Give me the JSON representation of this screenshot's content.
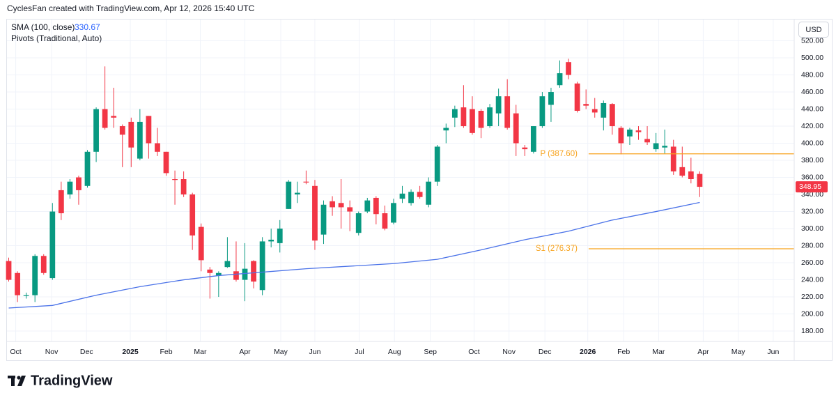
{
  "header": {
    "text": "CyclesFan created with TradingView.com, Apr 12, 2026 15:40 UTC"
  },
  "footer": {
    "brand": "TradingView"
  },
  "chart_data": {
    "type": "candlestick",
    "currency": "USD",
    "up_color": "#089981",
    "down_color": "#f23645",
    "open": [
      262,
      248,
      221,
      222,
      268,
      242,
      345,
      340,
      360,
      350,
      390,
      440,
      432,
      420,
      425,
      382,
      432,
      400,
      390,
      358,
      358,
      340,
      302,
      252,
      245,
      255,
      250,
      240,
      262,
      228,
      285,
      283,
      323,
      340,
      355,
      350,
      293,
      332,
      330,
      325,
      295,
      320,
      336,
      318,
      307,
      335,
      330,
      343,
      328,
      355,
      415,
      430,
      442,
      440,
      438,
      420,
      435,
      455,
      435,
      395,
      390,
      420,
      445,
      468,
      495,
      470,
      446,
      440,
      430,
      446,
      418,
      408,
      415,
      405,
      393,
      395,
      396,
      372,
      367,
      364
    ],
    "high": [
      266,
      250,
      225,
      270,
      270,
      330,
      355,
      358,
      362,
      392,
      442,
      490,
      465,
      422,
      430,
      440,
      432,
      418,
      390,
      368,
      367,
      342,
      306,
      255,
      250,
      290,
      285,
      283,
      263,
      290,
      300,
      310,
      357,
      355,
      368,
      357,
      333,
      338,
      358,
      333,
      320,
      336,
      338,
      327,
      335,
      350,
      346,
      350,
      360,
      398,
      423,
      444,
      468,
      455,
      440,
      446,
      464,
      475,
      445,
      398,
      420,
      460,
      465,
      497,
      499,
      472,
      463,
      453,
      450,
      447,
      420,
      418,
      420,
      420,
      412,
      416,
      404,
      396,
      383,
      367
    ],
    "low": [
      238,
      214,
      218,
      214,
      246,
      240,
      310,
      335,
      328,
      348,
      378,
      416,
      418,
      372,
      372,
      380,
      382,
      385,
      362,
      328,
      337,
      275,
      250,
      218,
      220,
      254,
      238,
      215,
      230,
      222,
      278,
      272,
      323,
      330,
      352,
      275,
      282,
      315,
      300,
      297,
      292,
      318,
      305,
      298,
      305,
      330,
      327,
      335,
      325,
      350,
      400,
      419,
      418,
      410,
      406,
      418,
      420,
      416,
      385,
      385,
      388,
      418,
      425,
      465,
      475,
      436,
      440,
      430,
      415,
      410,
      387,
      398,
      404,
      398,
      390,
      388,
      363,
      360,
      353,
      337
    ],
    "close": [
      240,
      222,
      222,
      268,
      248,
      320,
      318,
      355,
      345,
      390,
      440,
      418,
      430,
      410,
      395,
      425,
      400,
      390,
      365,
      357,
      340,
      292,
      263,
      248,
      248,
      262,
      240,
      253,
      238,
      285,
      287,
      300,
      355,
      342,
      354,
      286,
      328,
      325,
      325,
      320,
      318,
      333,
      317,
      300,
      330,
      341,
      343,
      337,
      355,
      396,
      418,
      440,
      420,
      412,
      418,
      442,
      455,
      418,
      400,
      393,
      420,
      455,
      460,
      482,
      480,
      438,
      444,
      436,
      447,
      420,
      400,
      416,
      413,
      401,
      400,
      397,
      367,
      362,
      358,
      348.95
    ],
    "last_price": {
      "value": 348.95,
      "label": "348.95"
    },
    "sma": {
      "name": "SMA (100, close)",
      "color": "#4a72e8",
      "x": [
        0,
        5,
        10,
        15,
        20,
        24,
        29,
        34,
        39,
        44,
        49,
        54,
        59,
        64,
        69,
        74,
        79
      ],
      "values": [
        207,
        210,
        222,
        232,
        240,
        245,
        249,
        253,
        256,
        259,
        264,
        275,
        287,
        297,
        310,
        320,
        330.67
      ]
    },
    "pivots": {
      "name": "Pivots (Traditional, Auto)",
      "color": "#f7a21b",
      "start": 66.3,
      "levels": [
        {
          "value": 387.6,
          "label": "P (387.60)"
        },
        {
          "value": 276.37,
          "label": "S1 (276.37)"
        }
      ]
    },
    "xlim": [
      -0.2,
      89.8
    ],
    "ylim": [
      167.8,
      543.3
    ],
    "xticks": [
      {
        "value": 0.8,
        "label": "Oct"
      },
      {
        "value": 4.9,
        "label": "Nov"
      },
      {
        "value": 8.9,
        "label": "Dec"
      },
      {
        "value": 13.9,
        "label": "2025"
      },
      {
        "value": 18.0,
        "label": "Feb"
      },
      {
        "value": 21.9,
        "label": "Mar"
      },
      {
        "value": 27.0,
        "label": "Apr"
      },
      {
        "value": 31.1,
        "label": "May"
      },
      {
        "value": 35.0,
        "label": "Jun"
      },
      {
        "value": 40.1,
        "label": "Jul"
      },
      {
        "value": 44.1,
        "label": "Aug"
      },
      {
        "value": 48.2,
        "label": "Sep"
      },
      {
        "value": 53.2,
        "label": "Oct"
      },
      {
        "value": 57.2,
        "label": "Nov"
      },
      {
        "value": 61.3,
        "label": "Dec"
      },
      {
        "value": 66.2,
        "label": "2026"
      },
      {
        "value": 70.3,
        "label": "Feb"
      },
      {
        "value": 74.3,
        "label": "Mar"
      },
      {
        "value": 79.4,
        "label": "Apr"
      },
      {
        "value": 83.4,
        "label": "May"
      },
      {
        "value": 87.4,
        "label": "Jun"
      }
    ],
    "yticks": [
      {
        "value": 180,
        "label": "180.00"
      },
      {
        "value": 200,
        "label": "200.00"
      },
      {
        "value": 220,
        "label": "220.00"
      },
      {
        "value": 240,
        "label": "240.00"
      },
      {
        "value": 260,
        "label": "260.00"
      },
      {
        "value": 280,
        "label": "280.00"
      },
      {
        "value": 300,
        "label": "300.00"
      },
      {
        "value": 320,
        "label": "320.00"
      },
      {
        "value": 340,
        "label": "340.00"
      },
      {
        "value": 360,
        "label": "360.00"
      },
      {
        "value": 380,
        "label": "380.00"
      },
      {
        "value": 400,
        "label": "400.00"
      },
      {
        "value": 420,
        "label": "420.00"
      },
      {
        "value": 440,
        "label": "440.00"
      },
      {
        "value": 460,
        "label": "460.00"
      },
      {
        "value": 480,
        "label": "480.00"
      },
      {
        "value": 500,
        "label": "500.00"
      },
      {
        "value": 520,
        "label": "520.00"
      }
    ],
    "grid": true
  }
}
